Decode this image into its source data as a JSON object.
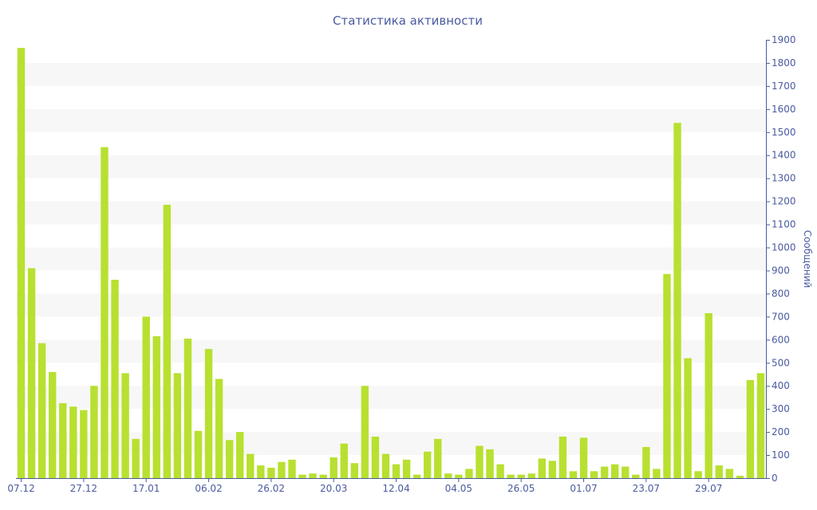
{
  "chart_data": {
    "type": "bar",
    "title": "Статистика активности",
    "ylabel": "Сообщений",
    "xlabel": "",
    "ylim": [
      0,
      1900
    ],
    "y_ticks": [
      0,
      100,
      200,
      300,
      400,
      500,
      600,
      700,
      800,
      900,
      1000,
      1100,
      1200,
      1300,
      1400,
      1500,
      1600,
      1700,
      1800,
      1900
    ],
    "y_axis_position": "right",
    "x_tick_labels": [
      {
        "label": "07.12",
        "index": 0
      },
      {
        "label": "27.12",
        "index": 6
      },
      {
        "label": "17.01",
        "index": 12
      },
      {
        "label": "06.02",
        "index": 18
      },
      {
        "label": "26.02",
        "index": 24
      },
      {
        "label": "20.03",
        "index": 30
      },
      {
        "label": "12.04",
        "index": 36
      },
      {
        "label": "04.05",
        "index": 42
      },
      {
        "label": "26.05",
        "index": 48
      },
      {
        "label": "01.07",
        "index": 54
      },
      {
        "label": "23.07",
        "index": 60
      },
      {
        "label": "29.07",
        "index": 66
      }
    ],
    "values": [
      1865,
      910,
      585,
      460,
      325,
      310,
      295,
      400,
      1435,
      860,
      455,
      170,
      700,
      615,
      1185,
      455,
      605,
      205,
      560,
      430,
      165,
      200,
      105,
      55,
      45,
      70,
      80,
      15,
      20,
      15,
      90,
      150,
      65,
      400,
      180,
      105,
      60,
      80,
      15,
      115,
      170,
      20,
      15,
      40,
      140,
      125,
      60,
      15,
      15,
      20,
      85,
      75,
      180,
      30,
      175,
      30,
      50,
      60,
      50,
      15,
      135,
      40,
      885,
      1540,
      520,
      30,
      715,
      55,
      40,
      10,
      425,
      455
    ],
    "bar_color": "#b8e030",
    "grid": "alternating horizontal bands",
    "legend": "none"
  }
}
